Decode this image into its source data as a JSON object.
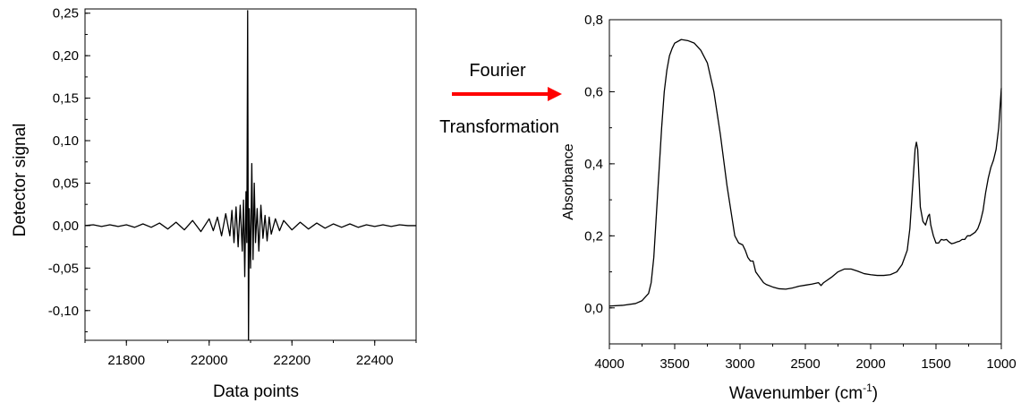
{
  "annotation": {
    "top_text": "Fourier",
    "bottom_text": "Transformation",
    "arrow_color": "#ff0000"
  },
  "chart_data": [
    {
      "type": "line",
      "title": "",
      "xlabel": "Data points",
      "ylabel": "Detector signal",
      "xlim": [
        21700,
        22500
      ],
      "ylim": [
        -0.135,
        0.255
      ],
      "x_ticks": [
        21800,
        22000,
        22200,
        22400
      ],
      "x_tick_labels": [
        "21800",
        "22000",
        "22200",
        "22400"
      ],
      "y_ticks": [
        -0.1,
        -0.05,
        0.0,
        0.05,
        0.1,
        0.15,
        0.2,
        0.25
      ],
      "y_tick_labels": [
        "-0,10",
        "-0,05",
        "0,00",
        "0,05",
        "0,10",
        "0,15",
        "0,20",
        "0,25"
      ],
      "grid": false,
      "series": [
        {
          "line_color": "#000000",
          "x": [
            21700,
            21720,
            21740,
            21760,
            21780,
            21800,
            21820,
            21840,
            21860,
            21880,
            21900,
            21920,
            21940,
            21960,
            21980,
            22000,
            22010,
            22020,
            22030,
            22040,
            22050,
            22055,
            22060,
            22065,
            22070,
            22075,
            22080,
            22083,
            22086,
            22089,
            22091,
            22093,
            22095,
            22097,
            22100,
            22103,
            22106,
            22109,
            22112,
            22116,
            22120,
            22125,
            22130,
            22135,
            22140,
            22145,
            22150,
            22160,
            22170,
            22180,
            22200,
            22220,
            22240,
            22260,
            22280,
            22300,
            22320,
            22340,
            22360,
            22380,
            22400,
            22420,
            22440,
            22460,
            22480,
            22500
          ],
          "y": [
            0.0,
            0.001,
            -0.001,
            0.001,
            -0.001,
            0.001,
            -0.002,
            0.002,
            -0.002,
            0.003,
            -0.004,
            0.004,
            -0.005,
            0.006,
            -0.007,
            0.008,
            -0.006,
            0.01,
            -0.012,
            0.014,
            -0.012,
            0.018,
            -0.02,
            0.022,
            -0.025,
            0.024,
            -0.03,
            0.03,
            -0.06,
            0.04,
            -0.02,
            0.253,
            -0.135,
            0.02,
            -0.05,
            0.073,
            -0.04,
            0.05,
            -0.02,
            0.02,
            -0.03,
            0.024,
            -0.015,
            0.012,
            -0.018,
            0.01,
            -0.01,
            0.008,
            -0.006,
            0.006,
            -0.005,
            0.004,
            -0.004,
            0.003,
            -0.003,
            0.002,
            -0.002,
            0.002,
            -0.002,
            0.001,
            -0.001,
            0.001,
            -0.001,
            0.001,
            0.0,
            0.0
          ]
        }
      ]
    },
    {
      "type": "line",
      "title": "",
      "xlabel": "Wavenumber (cm",
      "xlabel_superscript": "-1",
      "xlabel_suffix": ")",
      "ylabel": "Absorbance",
      "xlim": [
        4000,
        1000
      ],
      "ylim": [
        -0.1,
        0.8
      ],
      "x_reversed": true,
      "x_ticks": [
        4000,
        3500,
        3000,
        2500,
        2000,
        1500,
        1000
      ],
      "x_tick_labels": [
        "4000",
        "3500",
        "3000",
        "2500",
        "2000",
        "1500",
        "1000"
      ],
      "y_ticks": [
        0.0,
        0.2,
        0.4,
        0.6,
        0.8
      ],
      "y_tick_labels": [
        "0,0",
        "0,2",
        "0,4",
        "0,6",
        "0,8"
      ],
      "grid": false,
      "series": [
        {
          "line_color": "#000000",
          "x": [
            4000,
            3900,
            3800,
            3750,
            3700,
            3680,
            3660,
            3640,
            3620,
            3600,
            3580,
            3560,
            3540,
            3520,
            3500,
            3450,
            3400,
            3350,
            3300,
            3250,
            3200,
            3150,
            3100,
            3070,
            3040,
            3010,
            2980,
            2960,
            2940,
            2920,
            2900,
            2880,
            2860,
            2840,
            2820,
            2800,
            2750,
            2700,
            2650,
            2600,
            2550,
            2500,
            2450,
            2400,
            2380,
            2360,
            2340,
            2300,
            2250,
            2200,
            2150,
            2100,
            2050,
            2000,
            1950,
            1900,
            1850,
            1800,
            1760,
            1720,
            1700,
            1680,
            1660,
            1650,
            1640,
            1630,
            1620,
            1600,
            1580,
            1560,
            1550,
            1540,
            1520,
            1500,
            1480,
            1460,
            1440,
            1420,
            1400,
            1380,
            1360,
            1340,
            1320,
            1300,
            1280,
            1260,
            1240,
            1220,
            1200,
            1180,
            1160,
            1140,
            1120,
            1100,
            1080,
            1060,
            1040,
            1020,
            1000
          ],
          "y": [
            0.005,
            0.007,
            0.012,
            0.02,
            0.04,
            0.07,
            0.14,
            0.26,
            0.38,
            0.5,
            0.6,
            0.66,
            0.7,
            0.72,
            0.735,
            0.745,
            0.742,
            0.735,
            0.715,
            0.68,
            0.6,
            0.48,
            0.34,
            0.27,
            0.2,
            0.18,
            0.175,
            0.16,
            0.14,
            0.13,
            0.13,
            0.1,
            0.09,
            0.08,
            0.07,
            0.065,
            0.058,
            0.053,
            0.052,
            0.055,
            0.06,
            0.063,
            0.066,
            0.07,
            0.062,
            0.07,
            0.075,
            0.085,
            0.1,
            0.108,
            0.108,
            0.102,
            0.095,
            0.092,
            0.09,
            0.09,
            0.092,
            0.1,
            0.12,
            0.16,
            0.22,
            0.33,
            0.44,
            0.46,
            0.44,
            0.36,
            0.28,
            0.24,
            0.23,
            0.255,
            0.26,
            0.23,
            0.2,
            0.18,
            0.18,
            0.19,
            0.188,
            0.19,
            0.183,
            0.178,
            0.18,
            0.183,
            0.185,
            0.19,
            0.19,
            0.2,
            0.2,
            0.205,
            0.21,
            0.22,
            0.24,
            0.27,
            0.32,
            0.36,
            0.39,
            0.41,
            0.44,
            0.5,
            0.61
          ]
        }
      ]
    }
  ]
}
